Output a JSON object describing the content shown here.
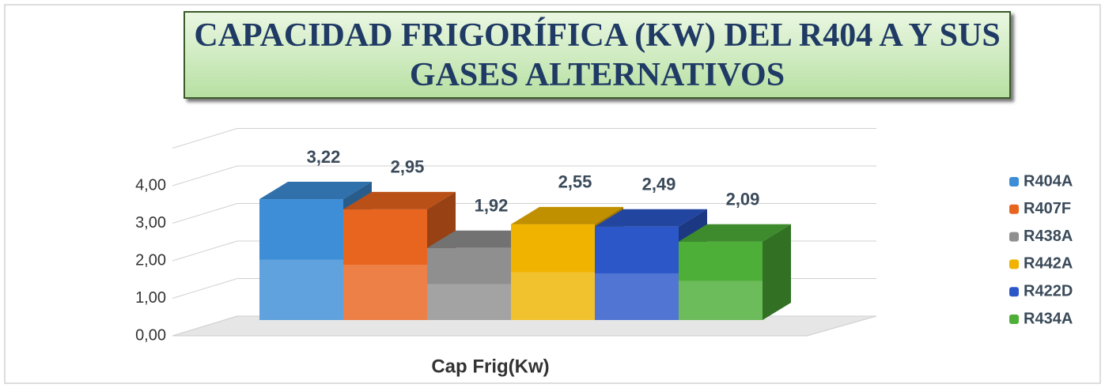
{
  "chart_data": {
    "type": "bar3d",
    "title": "CAPACIDAD FRIGORÍFICA (KW) DEL R404 A Y SUS GASES ALTERNATIVOS",
    "categories": [
      "Cap Frig(Kw)"
    ],
    "series": [
      {
        "name": "R404A",
        "color": "#3d8ed6",
        "values": [
          3.22
        ],
        "value_labels": [
          "3,22"
        ]
      },
      {
        "name": "R407F",
        "color": "#e8651f",
        "values": [
          2.95
        ],
        "value_labels": [
          "2,95"
        ]
      },
      {
        "name": "R438A",
        "color": "#8f8f8f",
        "values": [
          1.92
        ],
        "value_labels": [
          "1,92"
        ]
      },
      {
        "name": "R442A",
        "color": "#f0b400",
        "values": [
          2.55
        ],
        "value_labels": [
          "2,55"
        ]
      },
      {
        "name": "R422D",
        "color": "#2b57c8",
        "values": [
          2.49
        ],
        "value_labels": [
          "2,49"
        ]
      },
      {
        "name": "R434A",
        "color": "#4dae38",
        "values": [
          2.09
        ],
        "value_labels": [
          "2,09"
        ]
      }
    ],
    "ylim": [
      0,
      5
    ],
    "yticks": [
      {
        "value": 0,
        "label": "0,00"
      },
      {
        "value": 1,
        "label": "1,00"
      },
      {
        "value": 2,
        "label": "2,00"
      },
      {
        "value": 3,
        "label": "3,00"
      },
      {
        "value": 4,
        "label": "4,00"
      }
    ],
    "grid": true,
    "legend": "right"
  }
}
